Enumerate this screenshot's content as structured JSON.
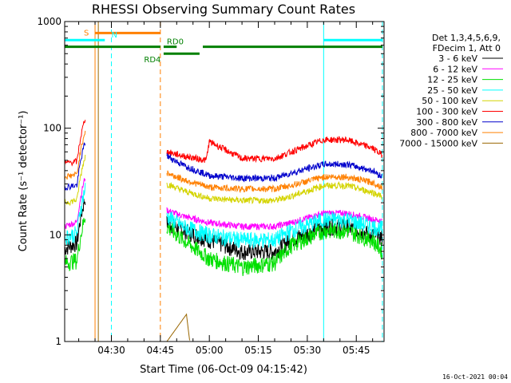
{
  "chart_data": {
    "type": "line",
    "title": "RHESSI Observing Summary Count Rates",
    "xlabel": "Start Time (06-Oct-09 04:15:42)",
    "ylabel": "Count Rate (s⁻¹ detector⁻¹)",
    "yscale": "log",
    "ylim": [
      1,
      1000
    ],
    "xlim": [
      "04:15:42",
      "05:53:30"
    ],
    "y_ticks": [
      "1",
      "10",
      "100",
      "1000"
    ],
    "x_ticks": [
      "04:30",
      "04:45",
      "05:00",
      "05:15",
      "05:30",
      "05:45"
    ],
    "legend": {
      "placement": "right",
      "header": [
        "Det 1,3,4,5,6,9,",
        "FDecim 1, Att 0"
      ]
    },
    "series": [
      {
        "name": "3 - 6 keV",
        "color": "#000000",
        "pre": [
          7.5,
          9
        ],
        "x": [
          "04:47",
          "04:52",
          "05:00",
          "05:10",
          "05:20",
          "05:25",
          "05:35",
          "05:42",
          "05:50",
          "05:53"
        ],
        "values": [
          13,
          11,
          9,
          7,
          7,
          9,
          12,
          12,
          10,
          9.5
        ]
      },
      {
        "name": "6 - 12 keV",
        "color": "#ff00ff",
        "pre": [
          12,
          14
        ],
        "x": [
          "04:47",
          "04:52",
          "05:00",
          "05:10",
          "05:20",
          "05:25",
          "05:35",
          "05:42",
          "05:50",
          "05:53"
        ],
        "values": [
          17,
          15,
          13,
          12,
          12,
          13,
          16,
          16,
          14,
          13.5
        ]
      },
      {
        "name": "12 - 25 keV",
        "color": "#00e000",
        "pre": [
          5.5,
          6
        ],
        "x": [
          "04:47",
          "04:52",
          "05:00",
          "05:10",
          "05:20",
          "05:25",
          "05:35",
          "05:42",
          "05:50",
          "05:53"
        ],
        "values": [
          12,
          9,
          6,
          5,
          5.5,
          8,
          11,
          11,
          9,
          7
        ]
      },
      {
        "name": "25 - 50 keV",
        "color": "#00ffff",
        "pre": [
          9.5,
          11
        ],
        "x": [
          "04:47",
          "04:52",
          "05:00",
          "05:10",
          "05:20",
          "05:25",
          "05:35",
          "05:42",
          "05:50",
          "05:53"
        ],
        "values": [
          15,
          12,
          10,
          9,
          9,
          11,
          14,
          14,
          12,
          11.5
        ]
      },
      {
        "name": "50 - 100 keV",
        "color": "#d4d400",
        "pre": [
          20,
          22
        ],
        "x": [
          "04:47",
          "04:52",
          "05:00",
          "05:10",
          "05:20",
          "05:25",
          "05:35",
          "05:42",
          "05:50",
          "05:53"
        ],
        "values": [
          30,
          26,
          22,
          21,
          21,
          23,
          29,
          29,
          25,
          23
        ]
      },
      {
        "name": "100 - 300 keV",
        "color": "#ff0000",
        "pre": [
          47,
          50
        ],
        "x": [
          "04:47",
          "04:52",
          "04:59",
          "05:00",
          "05:10",
          "05:20",
          "05:25",
          "05:35",
          "05:42",
          "05:50",
          "05:53"
        ],
        "values": [
          60,
          55,
          50,
          75,
          52,
          52,
          60,
          78,
          78,
          65,
          56
        ]
      },
      {
        "name": "300 - 800 keV",
        "color": "#0000cc",
        "pre": [
          28,
          30
        ],
        "x": [
          "04:47",
          "04:52",
          "05:00",
          "05:10",
          "05:20",
          "05:25",
          "05:35",
          "05:42",
          "05:50",
          "05:53"
        ],
        "values": [
          55,
          45,
          36,
          34,
          34,
          38,
          46,
          46,
          40,
          35
        ]
      },
      {
        "name": "800 - 7000 keV",
        "color": "#ff8000",
        "pre": [
          35,
          38
        ],
        "x": [
          "04:47",
          "04:52",
          "05:00",
          "05:10",
          "05:20",
          "05:25",
          "05:35",
          "05:42",
          "05:50",
          "05:53"
        ],
        "values": [
          38,
          33,
          28,
          27,
          27,
          29,
          35,
          35,
          31,
          28
        ]
      },
      {
        "name": "7000 - 15000 keV",
        "color": "#996600",
        "pre": [
          1,
          1
        ],
        "x": [
          "04:47",
          "04:53",
          "04:54"
        ],
        "values": [
          1,
          1.8,
          1
        ]
      }
    ],
    "status_bars": [
      {
        "label": "S",
        "color": "#ff8000",
        "y": 780,
        "x_start": "04:25",
        "x_end": "04:45"
      },
      {
        "label": "N",
        "color": "#00ffff",
        "y": 670,
        "x_start": "04:15:42",
        "x_end": "04:28",
        "label_x": "04:30"
      },
      {
        "label": "N",
        "color": "#00ffff",
        "y": 670,
        "x_start": "05:35",
        "x_end": "05:53"
      },
      {
        "label": "RD0",
        "color": "#008000",
        "y": 580,
        "x_start": "04:15:42",
        "x_end": "04:45"
      },
      {
        "label": "RD0",
        "color": "#008000",
        "y": 580,
        "x_start": "04:46",
        "x_end": "04:50",
        "show_label": true
      },
      {
        "label": "RD0",
        "color": "#008000",
        "y": 580,
        "x_start": "04:58",
        "x_end": "05:53"
      },
      {
        "label": "RD4",
        "color": "#008000",
        "y": 500,
        "x_start": "04:46",
        "x_end": "04:57",
        "label_x": "04:40"
      }
    ],
    "vlines": [
      {
        "x": "04:15:42",
        "color": "#00ffff",
        "style": "solid"
      },
      {
        "x": "04:25",
        "color": "#ff8000",
        "style": "solid"
      },
      {
        "x": "04:26",
        "color": "#996600",
        "style": "solid"
      },
      {
        "x": "04:30",
        "color": "#00ffff",
        "style": "dashed"
      },
      {
        "x": "04:45",
        "color": "#ff8000",
        "style": "dashed"
      },
      {
        "x": "05:35",
        "color": "#00ffff",
        "style": "solid"
      },
      {
        "x": "05:53",
        "color": "#00ffff",
        "style": "dashed"
      }
    ]
  },
  "footer": "16-Oct-2021 00:04"
}
